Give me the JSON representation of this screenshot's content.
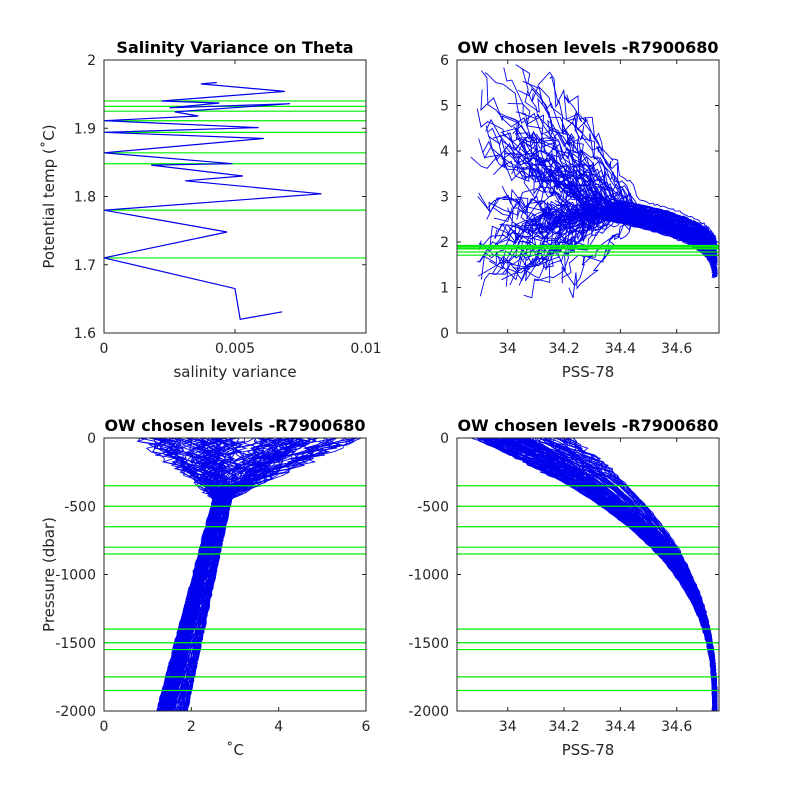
{
  "chart_data": [
    {
      "type": "line",
      "title": "Salinity Variance on Theta",
      "xlabel": "salinity variance",
      "ylabel": "Potential temp (˚C)",
      "xlim": [
        0,
        0.01
      ],
      "ylim": [
        1.6,
        2.0
      ],
      "xticks": [
        0,
        0.005,
        0.01
      ],
      "xticklabels": [
        "0",
        "0.005",
        "0.01"
      ],
      "yticks": [
        1.6,
        1.7,
        1.8,
        1.9,
        2.0
      ],
      "yticklabels": [
        "1.6",
        "1.7",
        "1.8",
        "1.9",
        "2"
      ],
      "grid": false,
      "line_color": "#0000ee",
      "level_color": "#00ee00",
      "series": [
        {
          "x": [
            0.0068,
            0.0052,
            0.005,
            0.0,
            0.0047,
            0.0,
            0.0083,
            0.0031,
            0.0053,
            0.0018,
            0.0049,
            0.0,
            0.0061,
            0.0,
            0.0059,
            0.0,
            0.0036,
            0.0027,
            0.0071,
            0.0025,
            0.0044,
            0.0022,
            0.0069,
            0.0037,
            0.0043
          ],
          "y": [
            1.631,
            1.62,
            1.665,
            1.71,
            1.748,
            1.78,
            1.804,
            1.823,
            1.83,
            1.846,
            1.848,
            1.864,
            1.885,
            1.894,
            1.901,
            1.911,
            1.918,
            1.924,
            1.936,
            1.93,
            1.937,
            1.94,
            1.954,
            1.965,
            1.967
          ]
        }
      ],
      "levels_y": [
        1.71,
        1.78,
        1.848,
        1.864,
        1.894,
        1.911,
        1.925,
        1.932,
        1.94
      ]
    },
    {
      "type": "line",
      "title": "OW chosen levels -R7900680",
      "xlabel": "PSS-78",
      "ylabel": "",
      "xlim": [
        33.82,
        34.75
      ],
      "ylim": [
        0,
        6
      ],
      "xticks": [
        34.0,
        34.2,
        34.4,
        34.6
      ],
      "xticklabels": [
        "34",
        "34.2",
        "34.4",
        "34.6"
      ],
      "yticks": [
        0,
        1,
        2,
        3,
        4,
        5,
        6
      ],
      "yticklabels": [
        "0",
        "1",
        "2",
        "3",
        "4",
        "5",
        "6"
      ],
      "grid": false,
      "line_color": "#0000ee",
      "level_color": "#00ee00",
      "profile_count": 120,
      "levels_y": [
        1.71,
        1.78,
        1.848,
        1.864,
        1.894,
        1.911,
        1.925
      ]
    },
    {
      "type": "line",
      "title": "OW chosen levels -R7900680",
      "xlabel": "˚C",
      "ylabel": "Pressure (dbar)",
      "xlim": [
        0,
        6
      ],
      "ylim": [
        -2000,
        0
      ],
      "xticks": [
        0,
        2,
        4,
        6
      ],
      "xticklabels": [
        "0",
        "2",
        "4",
        "6"
      ],
      "yticks": [
        -2000,
        -1500,
        -1000,
        -500,
        0
      ],
      "yticklabels": [
        "-2000",
        "-1500",
        "-1000",
        "-500",
        "0"
      ],
      "grid": false,
      "line_color": "#0000ee",
      "level_color": "#00ee00",
      "profile_count": 120,
      "levels_y": [
        -350,
        -500,
        -650,
        -800,
        -850,
        -1400,
        -1500,
        -1550,
        -1750,
        -1850
      ]
    },
    {
      "type": "line",
      "title": "OW chosen levels -R7900680",
      "xlabel": "PSS-78",
      "ylabel": "",
      "xlim": [
        33.82,
        34.75
      ],
      "ylim": [
        -2000,
        0
      ],
      "xticks": [
        34.0,
        34.2,
        34.4,
        34.6
      ],
      "xticklabels": [
        "34",
        "34.2",
        "34.4",
        "34.6"
      ],
      "yticks": [
        -2000,
        -1500,
        -1000,
        -500,
        0
      ],
      "yticklabels": [
        "-2000",
        "-1500",
        "-1000",
        "-500",
        "0"
      ],
      "grid": false,
      "line_color": "#0000ee",
      "level_color": "#00ee00",
      "profile_count": 120,
      "levels_y": [
        -350,
        -500,
        -650,
        -800,
        -850,
        -1400,
        -1500,
        -1550,
        -1750,
        -1850
      ]
    }
  ]
}
